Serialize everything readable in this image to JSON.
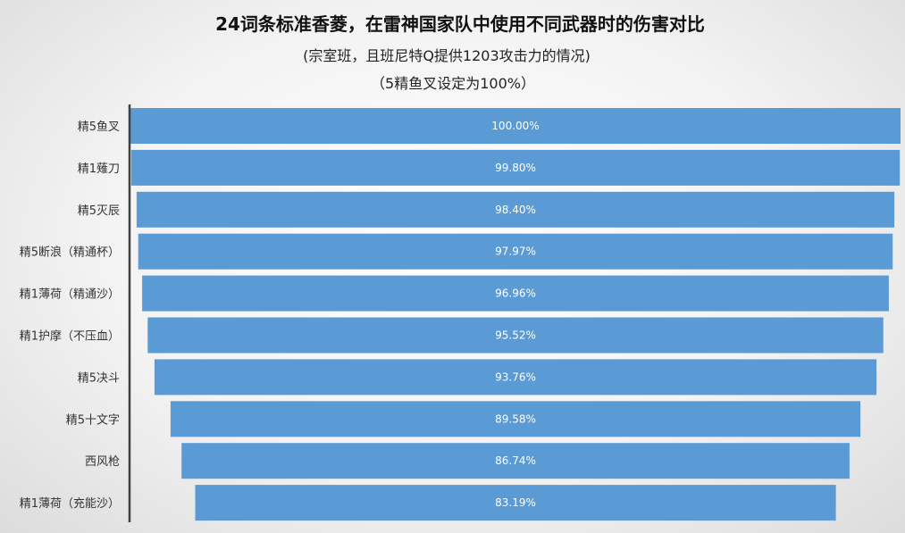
{
  "chart_data": {
    "type": "bar",
    "orientation": "horizontal-funnel",
    "title": "24词条标准香菱，在雷神国家队中使用不同武器时的伤害对比",
    "subtitles": [
      "(宗室班，且班尼特Q提供1203攻击力的情况)",
      "（5精鱼叉设定为100%）"
    ],
    "categories": [
      "精5鱼叉",
      "精1薙刀",
      "精5灭辰",
      "精5断浪（精通杯）",
      "精1薄荷（精通沙）",
      "精1护摩（不压血）",
      "精5决斗",
      "精5十文字",
      "西风枪",
      "精1薄荷（充能沙）"
    ],
    "values": [
      100.0,
      99.8,
      98.4,
      97.97,
      96.96,
      95.52,
      93.76,
      89.58,
      86.74,
      83.19
    ],
    "data_labels": [
      "100.00%",
      "99.80%",
      "98.40%",
      "97.97%",
      "96.96%",
      "95.52%",
      "93.76%",
      "89.58%",
      "86.74%",
      "83.19%"
    ],
    "unit": "%",
    "bar_color": "#5b9bd5",
    "axis_color": "#404040",
    "legend": "none",
    "grid": false
  }
}
